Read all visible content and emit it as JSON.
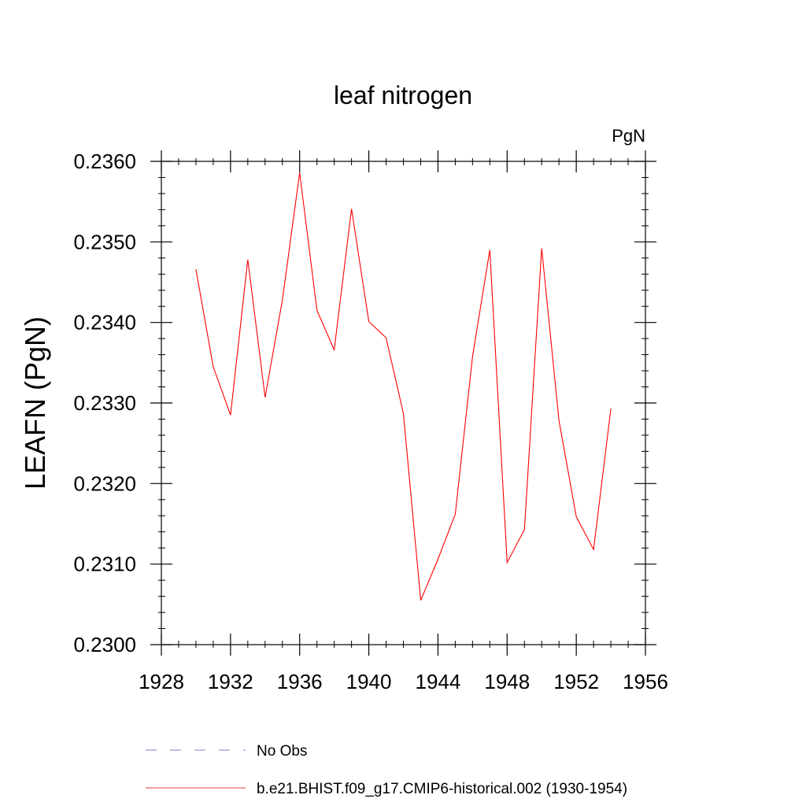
{
  "chart_data": {
    "type": "line",
    "title": "leaf nitrogen",
    "units": "PgN",
    "ylabel": "LEAFN  (PgN)",
    "xlabel": "",
    "xlim": [
      1928,
      1956
    ],
    "ylim": [
      0.23,
      0.236
    ],
    "xticks": [
      "1928",
      "1932",
      "1936",
      "1940",
      "1944",
      "1948",
      "1952",
      "1956"
    ],
    "yticks": [
      "0.2300",
      "0.2310",
      "0.2320",
      "0.2330",
      "0.2340",
      "0.2350",
      "0.2360"
    ],
    "x_minor_step": 1,
    "y_minor_step": 0.0002,
    "series": [
      {
        "name": "b.e21.BHIST.f09_g17.CMIP6-historical.002 (1930-1954)",
        "color": "#ff0000",
        "x": [
          1930,
          1931,
          1932,
          1933,
          1934,
          1935,
          1936,
          1937,
          1938,
          1939,
          1940,
          1941,
          1942,
          1943,
          1944,
          1945,
          1946,
          1947,
          1948,
          1949,
          1950,
          1951,
          1952,
          1953,
          1954
        ],
        "values": [
          0.23466,
          0.23345,
          0.23285,
          0.23478,
          0.23307,
          0.23428,
          0.23586,
          0.23415,
          0.23366,
          0.23541,
          0.23401,
          0.23381,
          0.23287,
          0.23055,
          0.23106,
          0.23162,
          0.23358,
          0.2349,
          0.23102,
          0.23143,
          0.23492,
          0.23278,
          0.23159,
          0.23118,
          0.23293
        ]
      }
    ],
    "legend": [
      {
        "label": "No Obs",
        "color": "#7b7bd6",
        "style": "dashed"
      },
      {
        "label": "b.e21.BHIST.f09_g17.CMIP6-historical.002 (1930-1954)",
        "color": "#e84040",
        "style": "solid"
      }
    ]
  }
}
